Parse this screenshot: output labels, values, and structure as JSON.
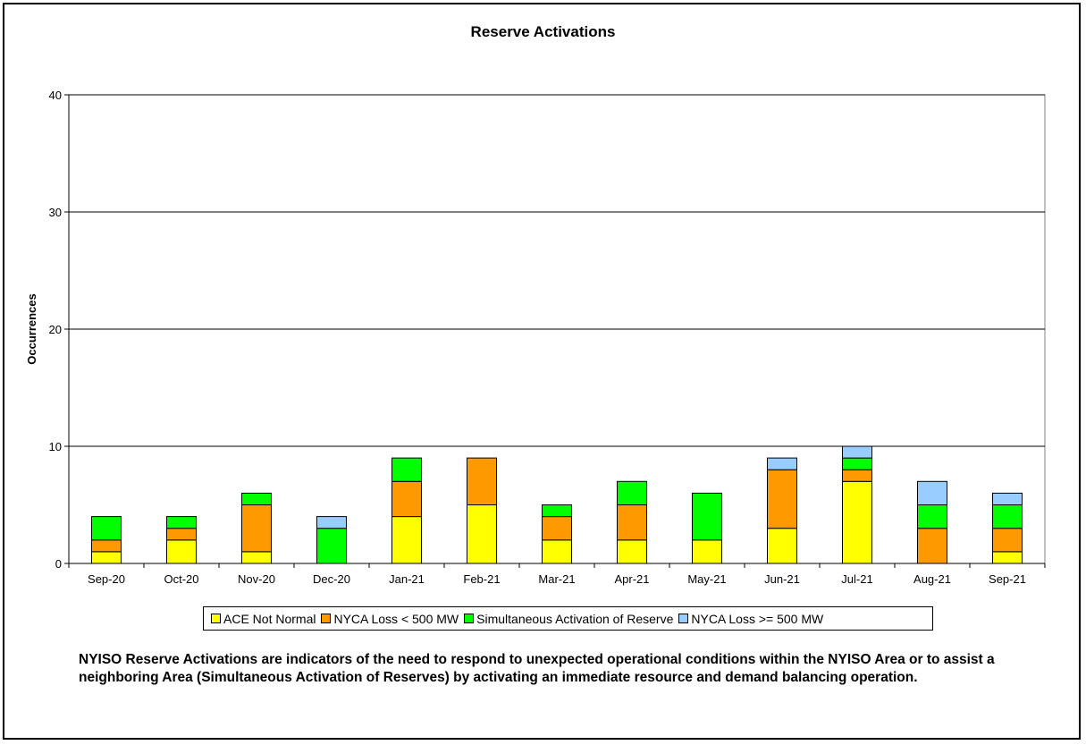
{
  "chart_data": {
    "type": "bar",
    "stacked": true,
    "title": "Reserve Activations",
    "xlabel": "",
    "ylabel": "Occurrences",
    "ylim": [
      0,
      40
    ],
    "yticks": [
      0,
      10,
      20,
      30,
      40
    ],
    "grid": true,
    "legend_position": "bottom",
    "categories": [
      "Sep-20",
      "Oct-20",
      "Nov-20",
      "Dec-20",
      "Jan-21",
      "Feb-21",
      "Mar-21",
      "Apr-21",
      "May-21",
      "Jun-21",
      "Jul-21",
      "Aug-21",
      "Sep-21"
    ],
    "series": [
      {
        "name": "ACE Not Normal",
        "color": "#FFFF00",
        "values": [
          1,
          2,
          1,
          0,
          4,
          5,
          2,
          2,
          2,
          3,
          7,
          0,
          1
        ]
      },
      {
        "name": "NYCA Loss < 500 MW",
        "color": "#FF9900",
        "values": [
          1,
          1,
          4,
          0,
          3,
          4,
          2,
          3,
          0,
          5,
          1,
          3,
          2
        ]
      },
      {
        "name": "Simultaneous Activation of Reserve",
        "color": "#00FF00",
        "values": [
          2,
          1,
          1,
          3,
          2,
          0,
          1,
          2,
          4,
          0,
          1,
          2,
          2
        ]
      },
      {
        "name": "NYCA Loss >= 500 MW",
        "color": "#99CCFF",
        "values": [
          0,
          0,
          0,
          1,
          0,
          0,
          0,
          0,
          0,
          1,
          1,
          2,
          1
        ]
      }
    ]
  },
  "caption": "NYISO Reserve Activations are indicators of the need to respond to unexpected operational conditions within the NYISO Area or to assist a neighboring Area (Simultaneous Activation of Reserves) by activating an immediate resource and demand balancing operation."
}
